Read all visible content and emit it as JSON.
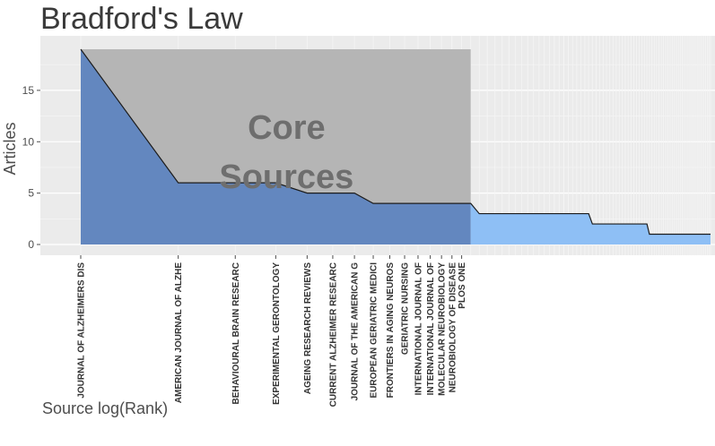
{
  "chart_data": {
    "type": "area",
    "title": "Bradford's Law",
    "xlabel": "Source log(Rank)",
    "ylabel": "Articles",
    "ylim": [
      0,
      19
    ],
    "yticks": [
      0,
      5,
      10,
      15
    ],
    "x_scale": "log",
    "grid": true,
    "core_zone": {
      "label_line1": "Core",
      "label_line2": "Sources",
      "ranks": [
        1,
        16
      ]
    },
    "colors": {
      "panel": "#ebebeb",
      "core_fill": "#6387bf",
      "noncore_fill": "#8ebff5",
      "core_band": "#b5b5b5",
      "line": "#1c1c1c"
    },
    "tick_labels": [
      {
        "rank": 1,
        "label": "JOURNAL OF ALZHEIMERS DIS"
      },
      {
        "rank": 2,
        "label": "AMERICAN JOURNAL OF ALZHE"
      },
      {
        "rank": 3,
        "label": "BEHAVIOURAL BRAIN RESEARC"
      },
      {
        "rank": 4,
        "label": "EXPERIMENTAL GERONTOLOGY"
      },
      {
        "rank": 5,
        "label": "AGEING RESEARCH REVIEWS"
      },
      {
        "rank": 6,
        "label": "CURRENT ALZHEIMER RESEARC"
      },
      {
        "rank": 7,
        "label": "JOURNAL OF THE AMERICAN G"
      },
      {
        "rank": 8,
        "label": "EUROPEAN GERIATRIC MEDICI"
      },
      {
        "rank": 9,
        "label": "FRONTIERS IN AGING NEUROS"
      },
      {
        "rank": 10,
        "label": "GERIATRIC NURSING"
      },
      {
        "rank": 11,
        "label": "INTERNATIONAL JOURNAL OF"
      },
      {
        "rank": 12,
        "label": "INTERNATIONAL JOURNAL OF"
      },
      {
        "rank": 13,
        "label": "MOLECULAR NEUROBIOLOGY"
      },
      {
        "rank": 14,
        "label": "NEUROBIOLOGY OF DISEASE"
      },
      {
        "rank": 15,
        "label": "PLOS ONE"
      }
    ],
    "series": [
      {
        "points": [
          [
            1,
            19
          ],
          [
            2,
            6
          ],
          [
            3,
            6
          ],
          [
            4,
            6
          ],
          [
            5,
            5
          ],
          [
            6,
            5
          ],
          [
            7,
            5
          ],
          [
            8,
            4
          ],
          [
            9,
            4
          ],
          [
            10,
            4
          ],
          [
            11,
            4
          ],
          [
            12,
            4
          ],
          [
            13,
            4
          ],
          [
            14,
            4
          ],
          [
            15,
            4
          ],
          [
            16,
            4
          ],
          [
            17,
            3
          ],
          [
            18,
            3
          ],
          [
            19,
            3
          ],
          [
            20,
            3
          ],
          [
            21,
            3
          ],
          [
            22,
            3
          ],
          [
            23,
            3
          ],
          [
            24,
            3
          ],
          [
            25,
            3
          ],
          [
            26,
            3
          ],
          [
            27,
            3
          ],
          [
            28,
            3
          ],
          [
            29,
            3
          ],
          [
            30,
            3
          ],
          [
            31,
            3
          ],
          [
            32,
            3
          ],
          [
            33,
            3
          ],
          [
            34,
            3
          ],
          [
            35,
            3
          ],
          [
            36,
            3
          ],
          [
            37,
            3
          ],
          [
            38,
            2
          ],
          [
            39,
            2
          ],
          [
            40,
            2
          ],
          [
            41,
            2
          ],
          [
            42,
            2
          ],
          [
            43,
            2
          ],
          [
            44,
            2
          ],
          [
            45,
            2
          ],
          [
            46,
            2
          ],
          [
            47,
            2
          ],
          [
            48,
            2
          ],
          [
            49,
            2
          ],
          [
            50,
            2
          ],
          [
            51,
            2
          ],
          [
            52,
            2
          ],
          [
            53,
            2
          ],
          [
            54,
            2
          ],
          [
            55,
            2
          ],
          [
            56,
            2
          ],
          [
            57,
            1
          ],
          [
            58,
            1
          ],
          [
            59,
            1
          ],
          [
            60,
            1
          ],
          [
            61,
            1
          ],
          [
            62,
            1
          ],
          [
            63,
            1
          ],
          [
            64,
            1
          ],
          [
            65,
            1
          ],
          [
            66,
            1
          ],
          [
            67,
            1
          ],
          [
            68,
            1
          ],
          [
            69,
            1
          ],
          [
            70,
            1
          ],
          [
            71,
            1
          ],
          [
            72,
            1
          ],
          [
            73,
            1
          ],
          [
            74,
            1
          ],
          [
            75,
            1
          ],
          [
            76,
            1
          ],
          [
            77,
            1
          ],
          [
            78,
            1
          ],
          [
            79,
            1
          ],
          [
            80,
            1
          ],
          [
            81,
            1
          ],
          [
            82,
            1
          ],
          [
            83,
            1
          ],
          [
            84,
            1
          ],
          [
            85,
            1
          ],
          [
            86,
            1
          ],
          [
            87,
            1
          ],
          [
            88,
            1
          ]
        ]
      }
    ]
  }
}
